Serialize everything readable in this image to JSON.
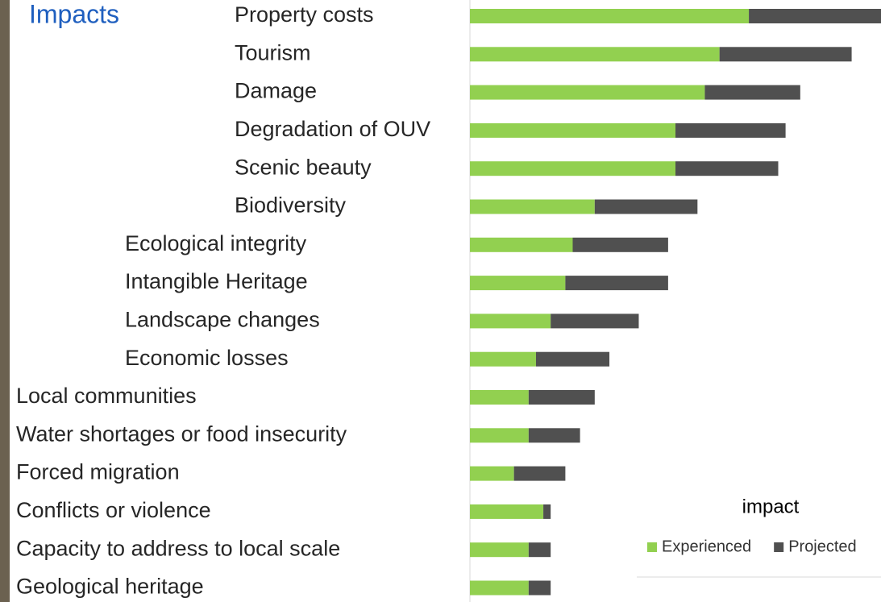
{
  "chart_data": {
    "type": "stacked_barh",
    "title": "Impacts",
    "legend_title": "impact",
    "categories": [
      "Property costs",
      "Tourism",
      "Damage",
      "Degradation of OUV",
      "Scenic beauty",
      "Biodiversity",
      "Ecological integrity",
      "Intangible Heritage",
      "Landscape changes",
      "Economic losses",
      "Local communities",
      "Water shortages or food insecurity",
      "Forced migration",
      "Conflicts or violence",
      "Capacity to address to local scale",
      "Geological heritage"
    ],
    "series": [
      {
        "name": "Experienced",
        "color": "#92d050",
        "values": [
          38,
          34,
          32,
          28,
          28,
          17,
          14,
          13,
          11,
          9,
          8,
          8,
          6,
          10,
          8,
          8
        ]
      },
      {
        "name": "Projected",
        "color": "#505050",
        "values": [
          18,
          18,
          13,
          15,
          14,
          14,
          13,
          14,
          12,
          10,
          9,
          7,
          7,
          1,
          3,
          3
        ]
      }
    ],
    "xlim": [
      0,
      56
    ],
    "legend": "lower right"
  }
}
